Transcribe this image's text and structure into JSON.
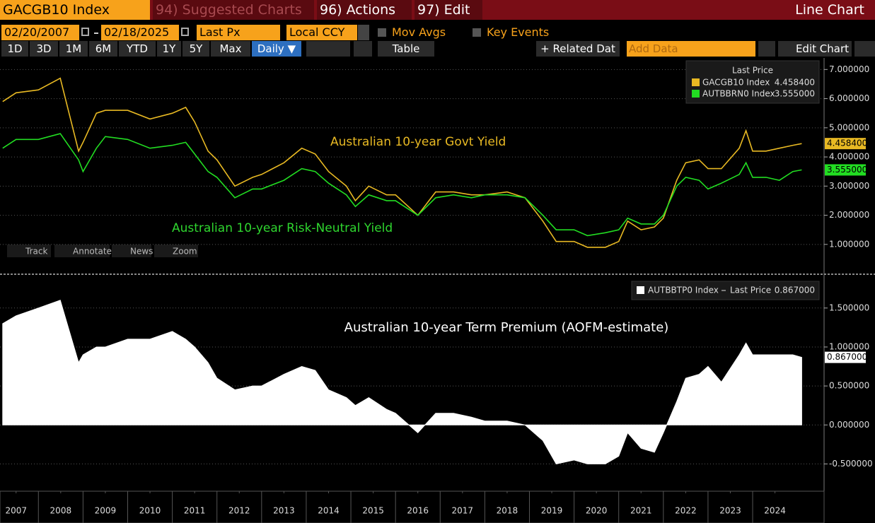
{
  "toolbar": {
    "ticker": "GACGB10 Index",
    "menus": [
      "94) Suggested Charts",
      "96) Actions",
      "97) Edit"
    ],
    "view": "Line Chart"
  },
  "settings": {
    "start_date": "02/20/2007",
    "end_date": "02/18/2025",
    "field": "Last Px",
    "currency": "Local CCY",
    "toggles": [
      "Mov Avgs",
      "Key Events"
    ]
  },
  "ranges": [
    "1D",
    "3D",
    "1M",
    "6M",
    "YTD",
    "1Y",
    "5Y",
    "Max"
  ],
  "buttons": {
    "frequency": "Daily ▼",
    "table": "Table",
    "related": "+ Related Dat",
    "add_data": "Add Data",
    "edit_chart": "Edit Chart"
  },
  "chart_tools": [
    "Track",
    "Annotate",
    "News",
    "Zoom"
  ],
  "chart_data": [
    {
      "type": "line",
      "legend_title": "Last Price",
      "grid": true,
      "annotations": [
        {
          "text": "Australian 10-year Govt Yield",
          "color": "#e8b923"
        },
        {
          "text": "Australian 10-year Risk-Neutral Yield",
          "color": "#2fd62f"
        }
      ],
      "x": [
        2007.2,
        2007.5,
        2008.0,
        2008.49,
        2008.9,
        2009.0,
        2009.3,
        2009.5,
        2010.0,
        2010.5,
        2011.0,
        2011.3,
        2011.5,
        2011.8,
        2012.0,
        2012.4,
        2012.8,
        2013.0,
        2013.5,
        2013.9,
        2014.2,
        2014.5,
        2014.9,
        2015.1,
        2015.4,
        2015.8,
        2016.0,
        2016.5,
        2016.9,
        2017.3,
        2017.7,
        2018.0,
        2018.5,
        2018.9,
        2019.3,
        2019.6,
        2020.0,
        2020.3,
        2020.7,
        2021.0,
        2021.2,
        2021.5,
        2021.8,
        2022.0,
        2022.3,
        2022.5,
        2022.8,
        2023.0,
        2023.3,
        2023.7,
        2023.85,
        2024.0,
        2024.3,
        2024.6,
        2024.9,
        2025.1
      ],
      "series": [
        {
          "name": "GACGB10 Index",
          "color": "#e8b923",
          "last_label": "4.458400",
          "values": [
            5.9,
            6.2,
            6.3,
            6.7,
            4.2,
            4.5,
            5.5,
            5.6,
            5.6,
            5.3,
            5.5,
            5.7,
            5.2,
            4.2,
            3.9,
            3.0,
            3.3,
            3.4,
            3.8,
            4.3,
            4.1,
            3.5,
            3.0,
            2.5,
            3.0,
            2.7,
            2.7,
            2.0,
            2.8,
            2.8,
            2.7,
            2.7,
            2.8,
            2.6,
            1.8,
            1.1,
            1.1,
            0.9,
            0.9,
            1.1,
            1.8,
            1.5,
            1.6,
            1.9,
            3.2,
            3.8,
            3.9,
            3.6,
            3.6,
            4.3,
            4.9,
            4.2,
            4.2,
            4.3,
            4.4,
            4.4584
          ]
        },
        {
          "name": "AUTBBRN0 Index",
          "color": "#22dd22",
          "last_label": "3.555000",
          "values": [
            4.3,
            4.6,
            4.6,
            4.8,
            3.9,
            3.5,
            4.3,
            4.7,
            4.6,
            4.3,
            4.4,
            4.5,
            4.1,
            3.5,
            3.3,
            2.6,
            2.9,
            2.9,
            3.2,
            3.6,
            3.5,
            3.1,
            2.7,
            2.3,
            2.7,
            2.5,
            2.5,
            2.0,
            2.6,
            2.7,
            2.6,
            2.7,
            2.7,
            2.6,
            2.0,
            1.5,
            1.5,
            1.3,
            1.4,
            1.5,
            1.9,
            1.7,
            1.7,
            2.0,
            3.0,
            3.3,
            3.2,
            2.9,
            3.1,
            3.4,
            3.8,
            3.3,
            3.3,
            3.2,
            3.5,
            3.555
          ]
        }
      ],
      "xlim": [
        2007.14,
        2025.6
      ],
      "ylim": [
        0.05,
        7.25
      ],
      "yticks": [
        {
          "value": 1,
          "label": "1.000000"
        },
        {
          "value": 2,
          "label": "2.000000"
        },
        {
          "value": 3,
          "label": "3.000000"
        },
        {
          "value": 4,
          "label": "4.000000"
        },
        {
          "value": 5,
          "label": "5.000000"
        },
        {
          "value": 6,
          "label": "6.000000"
        },
        {
          "value": 7,
          "label": "7.000000"
        }
      ]
    },
    {
      "type": "area",
      "legend_title": "Last Price",
      "grid": true,
      "annotations": [
        {
          "text": "Australian 10-year Term Premium (AOFM-estimate)",
          "color": "#ffffff"
        }
      ],
      "x": [
        2007.2,
        2007.5,
        2008.0,
        2008.49,
        2008.9,
        2009.0,
        2009.3,
        2009.5,
        2010.0,
        2010.5,
        2011.0,
        2011.3,
        2011.5,
        2011.8,
        2012.0,
        2012.4,
        2012.8,
        2013.0,
        2013.5,
        2013.9,
        2014.2,
        2014.5,
        2014.9,
        2015.1,
        2015.4,
        2015.8,
        2016.0,
        2016.5,
        2016.9,
        2017.3,
        2017.7,
        2018.0,
        2018.5,
        2018.9,
        2019.3,
        2019.6,
        2020.0,
        2020.3,
        2020.7,
        2021.0,
        2021.2,
        2021.5,
        2021.8,
        2022.0,
        2022.3,
        2022.5,
        2022.8,
        2023.0,
        2023.3,
        2023.7,
        2023.85,
        2024.0,
        2024.3,
        2024.6,
        2024.9,
        2025.1
      ],
      "series": [
        {
          "name": "AUTBBTP0 Index",
          "color": "#ffffff",
          "last_label": "0.867000",
          "values": [
            1.3,
            1.4,
            1.5,
            1.6,
            0.8,
            0.9,
            1.0,
            1.0,
            1.1,
            1.1,
            1.2,
            1.1,
            1.0,
            0.8,
            0.6,
            0.45,
            0.5,
            0.5,
            0.65,
            0.75,
            0.7,
            0.45,
            0.35,
            0.25,
            0.35,
            0.2,
            0.15,
            -0.1,
            0.15,
            0.15,
            0.1,
            0.05,
            0.05,
            0.0,
            -0.2,
            -0.5,
            -0.45,
            -0.5,
            -0.5,
            -0.4,
            -0.1,
            -0.3,
            -0.35,
            -0.1,
            0.3,
            0.6,
            0.65,
            0.75,
            0.55,
            0.9,
            1.05,
            0.9,
            0.9,
            0.9,
            0.9,
            0.867
          ]
        }
      ],
      "xlim": [
        2007.14,
        2025.6
      ],
      "ylim": [
        -0.85,
        1.87
      ],
      "yticks": [
        {
          "value": -0.5,
          "label": "-0.500000"
        },
        {
          "value": 0,
          "label": "0.000000"
        },
        {
          "value": 0.5,
          "label": "0.500000"
        },
        {
          "value": 1,
          "label": "1.000000"
        },
        {
          "value": 1.5,
          "label": "1.500000"
        }
      ],
      "xticks": [
        {
          "value": 2007.5,
          "label": "2007"
        },
        {
          "value": 2008.5,
          "label": "2008"
        },
        {
          "value": 2009.5,
          "label": "2009"
        },
        {
          "value": 2010.5,
          "label": "2010"
        },
        {
          "value": 2011.5,
          "label": "2011"
        },
        {
          "value": 2012.5,
          "label": "2012"
        },
        {
          "value": 2013.5,
          "label": "2013"
        },
        {
          "value": 2014.5,
          "label": "2014"
        },
        {
          "value": 2015.5,
          "label": "2015"
        },
        {
          "value": 2016.5,
          "label": "2016"
        },
        {
          "value": 2017.5,
          "label": "2017"
        },
        {
          "value": 2018.5,
          "label": "2018"
        },
        {
          "value": 2019.5,
          "label": "2019"
        },
        {
          "value": 2020.5,
          "label": "2020"
        },
        {
          "value": 2021.5,
          "label": "2021"
        },
        {
          "value": 2022.5,
          "label": "2022"
        },
        {
          "value": 2023.5,
          "label": "2023"
        },
        {
          "value": 2024.5,
          "label": "2024"
        }
      ]
    }
  ]
}
